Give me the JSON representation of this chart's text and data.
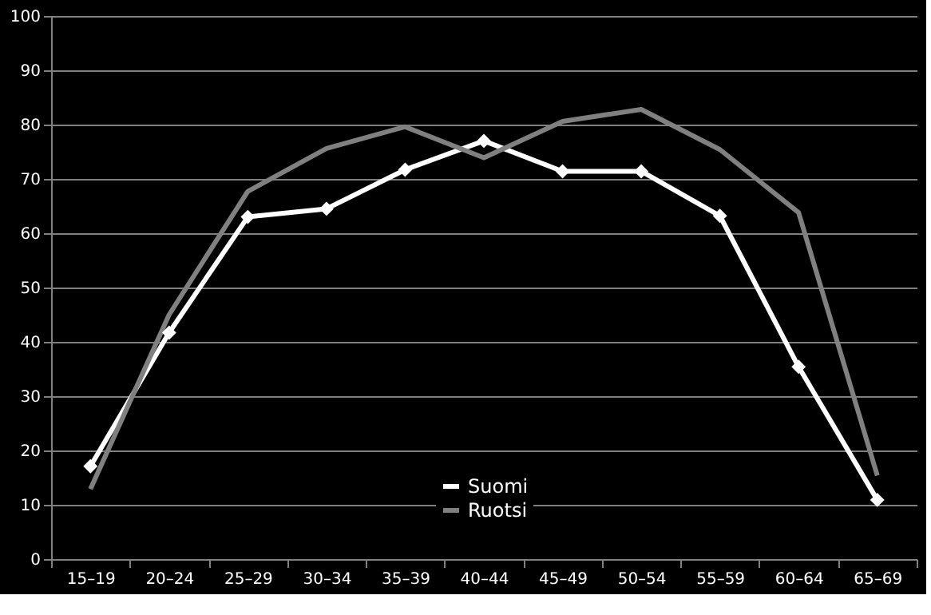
{
  "chart_data": {
    "type": "line",
    "categories": [
      "15–19",
      "20–24",
      "25–29",
      "30–34",
      "35–39",
      "40–44",
      "45–49",
      "50–54",
      "55–59",
      "60–64",
      "65–69"
    ],
    "series": [
      {
        "name": "Suomi",
        "color": "#ffffff",
        "marker": "diamond",
        "values": [
          17.1,
          41.7,
          63,
          64.5,
          71.7,
          77,
          71.4,
          71.4,
          63.2,
          35.4,
          10.9
        ]
      },
      {
        "name": "Ruotsi",
        "color": "#808080",
        "marker": "none",
        "values": [
          12.9,
          45,
          67.7,
          75.6,
          79.6,
          73.9,
          80.6,
          82.8,
          75.4,
          63.8,
          15.4
        ]
      }
    ],
    "ylim": [
      0,
      100
    ],
    "yticks": [
      0,
      10,
      20,
      30,
      40,
      50,
      60,
      70,
      80,
      90,
      100
    ],
    "grid": "y",
    "legend": "bottom"
  }
}
